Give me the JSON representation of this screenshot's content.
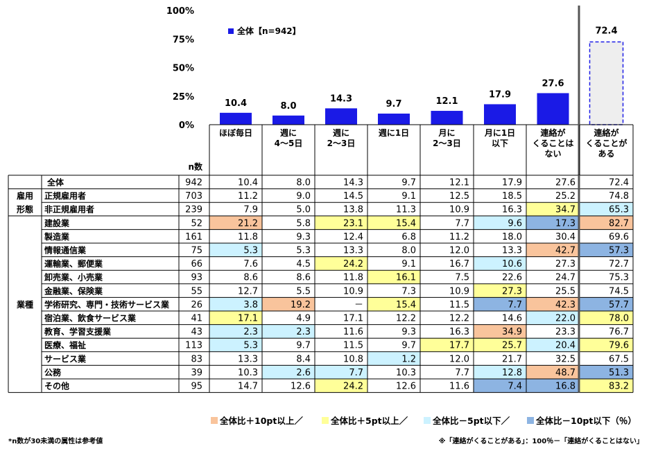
{
  "chart_data": {
    "type": "bar",
    "y_ticks": [
      "100%",
      "75%",
      "50%",
      "25%",
      "0%"
    ],
    "ylim": [
      0,
      100
    ],
    "legend": "全体【n=942】",
    "categories": [
      "ほぼ毎日",
      "週に\n4～5日",
      "週に\n2～3日",
      "週に1日",
      "月に\n2～3日",
      "月に1日\n以下",
      "連絡が\nくることは\nない"
    ],
    "values": [
      10.4,
      8.0,
      14.3,
      9.7,
      12.1,
      17.9,
      27.6
    ],
    "value_labels": [
      "10.4",
      "8.0",
      "14.3",
      "9.7",
      "12.1",
      "17.9",
      "27.6"
    ],
    "extra": {
      "category": "連絡が\nくることが\nある",
      "value": 72.4,
      "value_label": "72.4",
      "style": "dashed"
    },
    "colors": {
      "bar": "#1a1ae6",
      "extra_fill": "#eeeeee",
      "extra_stroke": "#1a1ae6"
    }
  },
  "table": {
    "n_header": "n数",
    "rows": [
      {
        "group": "",
        "label": "全体",
        "n": "942",
        "values": [
          "10.4",
          "8.0",
          "14.3",
          "9.7",
          "12.1",
          "17.9",
          "27.6",
          "72.4"
        ],
        "hl": [
          "",
          "",
          "",
          "",
          "",
          "",
          "",
          ""
        ]
      },
      {
        "group": "雇用\n形態",
        "label": "正規雇用者",
        "n": "703",
        "values": [
          "11.2",
          "9.0",
          "14.5",
          "9.1",
          "12.5",
          "18.5",
          "25.2",
          "74.8"
        ],
        "hl": [
          "",
          "",
          "",
          "",
          "",
          "",
          "",
          ""
        ]
      },
      {
        "group": "",
        "label": "非正規雇用者",
        "n": "239",
        "values": [
          "7.9",
          "5.0",
          "13.8",
          "11.3",
          "10.9",
          "16.3",
          "34.7",
          "65.3"
        ],
        "hl": [
          "",
          "",
          "",
          "",
          "",
          "",
          "y",
          "lb"
        ]
      },
      {
        "group": "業種",
        "label": "建設業",
        "n": "52",
        "values": [
          "21.2",
          "5.8",
          "23.1",
          "15.4",
          "7.7",
          "9.6",
          "17.3",
          "82.7"
        ],
        "hl": [
          "o",
          "",
          "y",
          "y",
          "",
          "lb",
          "b",
          "o"
        ]
      },
      {
        "group": "",
        "label": "製造業",
        "n": "161",
        "values": [
          "11.8",
          "9.3",
          "12.4",
          "6.8",
          "11.2",
          "18.0",
          "30.4",
          "69.6"
        ],
        "hl": [
          "",
          "",
          "",
          "",
          "",
          "",
          "",
          ""
        ]
      },
      {
        "group": "",
        "label": "情報通信業",
        "n": "75",
        "values": [
          "5.3",
          "5.3",
          "13.3",
          "8.0",
          "12.0",
          "13.3",
          "42.7",
          "57.3"
        ],
        "hl": [
          "lb",
          "",
          "",
          "",
          "",
          "",
          "o",
          "b"
        ]
      },
      {
        "group": "",
        "label": "運輸業、郵便業",
        "n": "66",
        "values": [
          "7.6",
          "4.5",
          "24.2",
          "9.1",
          "16.7",
          "10.6",
          "27.3",
          "72.7"
        ],
        "hl": [
          "",
          "",
          "y",
          "",
          "",
          "lb",
          "",
          ""
        ]
      },
      {
        "group": "",
        "label": "卸売業、小売業",
        "n": "93",
        "values": [
          "8.6",
          "8.6",
          "11.8",
          "16.1",
          "7.5",
          "22.6",
          "24.7",
          "75.3"
        ],
        "hl": [
          "",
          "",
          "",
          "y",
          "",
          "",
          "",
          ""
        ]
      },
      {
        "group": "",
        "label": "金融業、保険業",
        "n": "55",
        "values": [
          "12.7",
          "5.5",
          "10.9",
          "7.3",
          "10.9",
          "27.3",
          "25.5",
          "74.5"
        ],
        "hl": [
          "",
          "",
          "",
          "",
          "",
          "y",
          "",
          ""
        ]
      },
      {
        "group": "",
        "label": "学術研究、専門・技術サービス業",
        "n": "26",
        "values": [
          "3.8",
          "19.2",
          "－",
          "15.4",
          "11.5",
          "7.7",
          "42.3",
          "57.7"
        ],
        "hl": [
          "lb",
          "o",
          "",
          "y",
          "",
          "b",
          "o",
          "b"
        ]
      },
      {
        "group": "",
        "label": "宿泊業、飲食サービス業",
        "n": "41",
        "values": [
          "17.1",
          "4.9",
          "17.1",
          "12.2",
          "12.2",
          "14.6",
          "22.0",
          "78.0"
        ],
        "hl": [
          "y",
          "",
          "",
          "",
          "",
          "",
          "lb",
          "y"
        ]
      },
      {
        "group": "",
        "label": "教育、学習支援業",
        "n": "43",
        "values": [
          "2.3",
          "2.3",
          "11.6",
          "9.3",
          "16.3",
          "34.9",
          "23.3",
          "76.7"
        ],
        "hl": [
          "lb",
          "lb",
          "",
          "",
          "",
          "o",
          "",
          ""
        ]
      },
      {
        "group": "",
        "label": "医療、福祉",
        "n": "113",
        "values": [
          "5.3",
          "9.7",
          "11.5",
          "9.7",
          "17.7",
          "25.7",
          "20.4",
          "79.6"
        ],
        "hl": [
          "lb",
          "",
          "",
          "",
          "y",
          "y",
          "lb",
          "y"
        ]
      },
      {
        "group": "",
        "label": "サービス業",
        "n": "83",
        "values": [
          "13.3",
          "8.4",
          "10.8",
          "1.2",
          "12.0",
          "21.7",
          "32.5",
          "67.5"
        ],
        "hl": [
          "",
          "",
          "",
          "lb",
          "",
          "",
          "",
          ""
        ]
      },
      {
        "group": "",
        "label": "公務",
        "n": "39",
        "values": [
          "10.3",
          "2.6",
          "7.7",
          "10.3",
          "7.7",
          "12.8",
          "48.7",
          "51.3"
        ],
        "hl": [
          "",
          "lb",
          "lb",
          "",
          "",
          "lb",
          "o",
          "b"
        ]
      },
      {
        "group": "",
        "label": "その他",
        "n": "95",
        "values": [
          "14.7",
          "12.6",
          "24.2",
          "12.6",
          "11.6",
          "7.4",
          "16.8",
          "83.2"
        ],
        "hl": [
          "",
          "",
          "y",
          "",
          "",
          "b",
          "b",
          "y"
        ]
      }
    ]
  },
  "legend_items": [
    {
      "label": "全体比＋10pt以上／",
      "color": "#f9c49c"
    },
    {
      "label": "全体比＋5pt以上／",
      "color": "#ffff99"
    },
    {
      "label": "全体比－5pt以下／",
      "color": "#ccf2ff"
    },
    {
      "label": "全体比－10pt以下（％）",
      "color": "#8db4e2"
    }
  ],
  "notes": {
    "left": "*n数が30未満の属性は参考値",
    "right": "※「連絡がくることがある」：100％－「連絡がくることはない」"
  },
  "colors": {
    "o": "#f9c49c",
    "y": "#ffff99",
    "lb": "#ccf2ff",
    "b": "#8db4e2"
  }
}
